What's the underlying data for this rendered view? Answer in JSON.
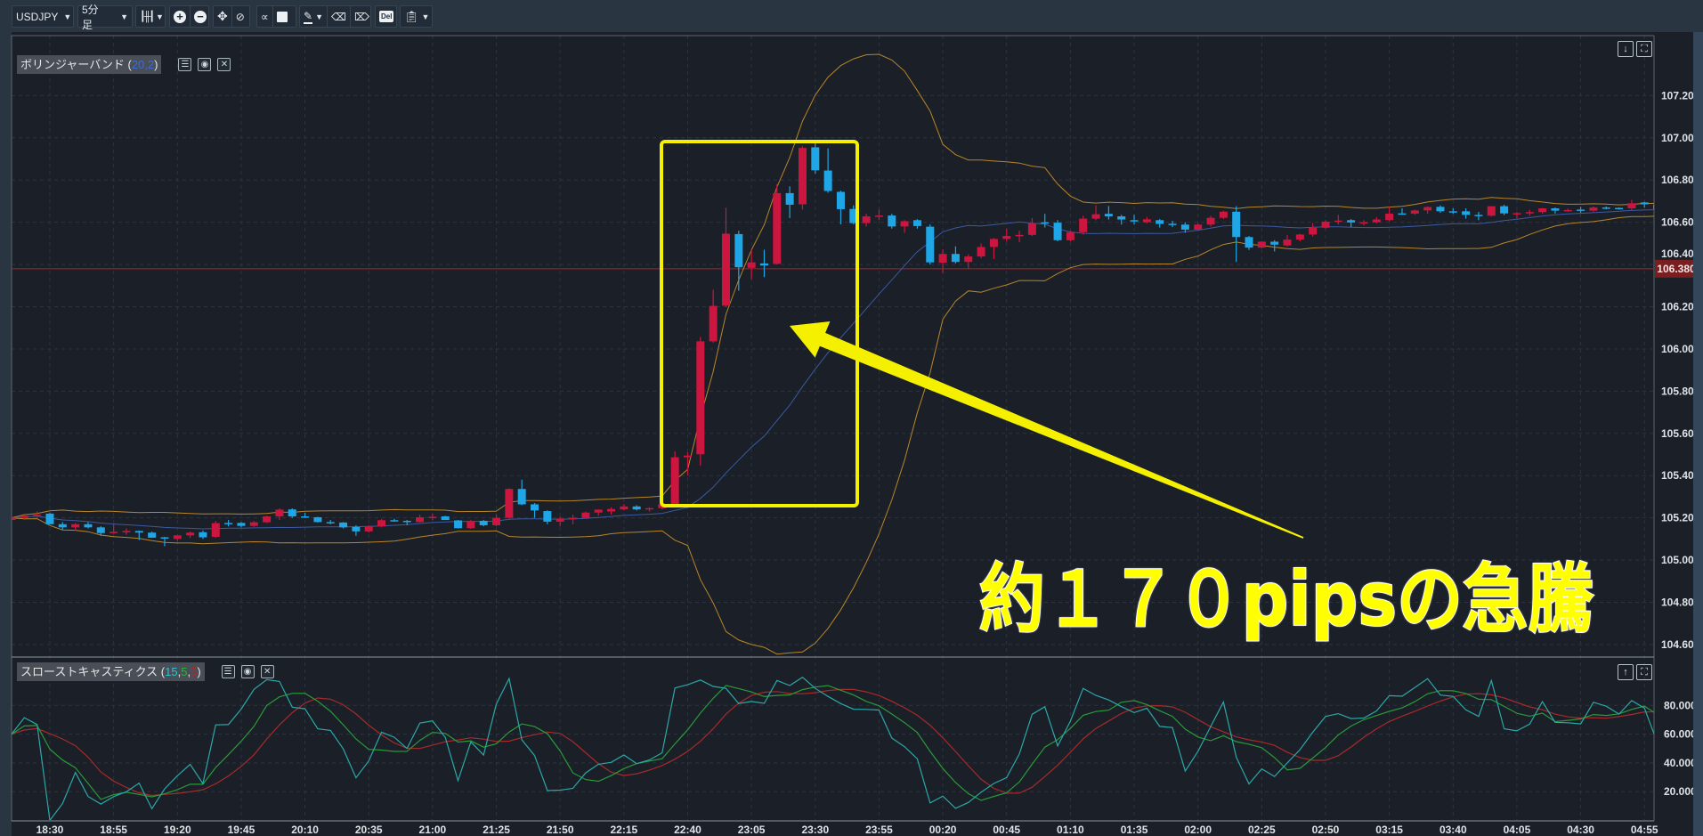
{
  "toolbar": {
    "symbol": "USDJPY",
    "timeframe": "5分足",
    "chart_type_icon": "candlestick-icon",
    "tools": [
      "zoom-in-icon",
      "zoom-out-icon",
      "move-icon",
      "axis-reset-icon",
      "indicator-icon",
      "save-icon",
      "pen-icon",
      "eraser-icon",
      "eraser-all-icon",
      "delete-icon",
      "clipboard-icon"
    ],
    "delete_label": "Del"
  },
  "main_panel": {
    "indicator_name": "ボリンジャーバンド (",
    "indicator_params": "20,2",
    "indicator_close": ")"
  },
  "stoch_panel": {
    "indicator_name": "スローストキャスティクス (",
    "param_k": "15",
    "param_d": "5",
    "param_sd": "5",
    "sep": ",",
    "indicator_close": ")"
  },
  "current_price": "106.380",
  "annotation": {
    "text": "約１７０pipsの急騰"
  },
  "colors": {
    "background": "#1b1f27",
    "up_candle": "#cc1640",
    "down_candle": "#1ea6e6",
    "bb_band": "#b8862a",
    "bb_mid": "#3b5aa3",
    "stoch_k": "#2ba8a8",
    "stoch_slow_k": "#2a9a3a",
    "stoch_slow_d": "#a82a2a",
    "annotation": "#ffff00",
    "current_price_line": "#a3262a"
  },
  "chart_data": [
    {
      "type": "candlestick",
      "title": "",
      "symbol": "USDJPY",
      "interval_minutes": 5,
      "first_time": "18:15",
      "ylim": [
        104.545,
        107.484
      ],
      "y_ticks": [
        "107.200",
        "107.000",
        "106.800",
        "106.600",
        "106.400",
        "106.200",
        "106.000",
        "105.800",
        "105.600",
        "105.400",
        "105.200",
        "105.000",
        "104.800",
        "104.600"
      ],
      "x_ticks": [
        "18:30",
        "18:55",
        "19:20",
        "19:45",
        "20:10",
        "20:35",
        "21:00",
        "21:25",
        "21:50",
        "22:15",
        "22:40",
        "23:05",
        "23:30",
        "23:55",
        "00:20",
        "00:45",
        "01:10",
        "01:35",
        "02:00",
        "02:25",
        "02:50",
        "03:15",
        "03:40",
        "04:05",
        "04:30",
        "04:55"
      ],
      "grid": true,
      "indicator": "bollinger(20,2)",
      "ohlc": [
        [
          105.19,
          105.21,
          105.185,
          105.2
        ],
        [
          105.2,
          105.22,
          105.19,
          105.21
        ],
        [
          105.21,
          105.23,
          105.2,
          105.215
        ],
        [
          105.22,
          105.225,
          105.17,
          105.17
        ],
        [
          105.17,
          105.18,
          105.145,
          105.155
        ],
        [
          105.155,
          105.175,
          105.14,
          105.17
        ],
        [
          105.17,
          105.18,
          105.15,
          105.155
        ],
        [
          105.155,
          105.16,
          105.115,
          105.128
        ],
        [
          105.128,
          105.17,
          105.125,
          105.134
        ],
        [
          105.135,
          105.15,
          105.12,
          105.138
        ],
        [
          105.138,
          105.14,
          105.095,
          105.13
        ],
        [
          105.13,
          105.135,
          105.105,
          105.106
        ],
        [
          105.108,
          105.11,
          105.066,
          105.102
        ],
        [
          105.1,
          105.12,
          105.09,
          105.117
        ],
        [
          105.117,
          105.135,
          105.105,
          105.13
        ],
        [
          105.132,
          105.14,
          105.1,
          105.108
        ],
        [
          105.11,
          105.185,
          105.105,
          105.175
        ],
        [
          105.176,
          105.19,
          105.16,
          105.172
        ],
        [
          105.176,
          105.18,
          105.155,
          105.162
        ],
        [
          105.162,
          105.185,
          105.158,
          105.179
        ],
        [
          105.179,
          105.21,
          105.175,
          105.207
        ],
        [
          105.207,
          105.245,
          105.19,
          105.239
        ],
        [
          105.24,
          105.245,
          105.2,
          105.207
        ],
        [
          105.207,
          105.225,
          105.2,
          105.205
        ],
        [
          105.203,
          105.205,
          105.178,
          105.18
        ],
        [
          105.18,
          105.19,
          105.17,
          105.178
        ],
        [
          105.178,
          105.18,
          105.15,
          105.155
        ],
        [
          105.157,
          105.165,
          105.115,
          105.136
        ],
        [
          105.136,
          105.165,
          105.13,
          105.16
        ],
        [
          105.16,
          105.195,
          105.155,
          105.189
        ],
        [
          105.189,
          105.196,
          105.182,
          105.186
        ],
        [
          105.186,
          105.19,
          105.165,
          105.18
        ],
        [
          105.18,
          105.215,
          105.178,
          105.203
        ],
        [
          105.203,
          105.22,
          105.19,
          105.205
        ],
        [
          105.207,
          105.21,
          105.19,
          105.19
        ],
        [
          105.188,
          105.19,
          105.15,
          105.151
        ],
        [
          105.151,
          105.19,
          105.148,
          105.186
        ],
        [
          105.186,
          105.19,
          105.16,
          105.165
        ],
        [
          105.165,
          105.215,
          105.16,
          105.2
        ],
        [
          105.2,
          105.34,
          105.195,
          105.337
        ],
        [
          105.337,
          105.381,
          105.26,
          105.264
        ],
        [
          105.264,
          105.27,
          105.2,
          105.235
        ],
        [
          105.232,
          105.236,
          105.17,
          105.182
        ],
        [
          105.182,
          105.205,
          105.16,
          105.197
        ],
        [
          105.198,
          105.215,
          105.17,
          105.2
        ],
        [
          105.2,
          105.23,
          105.195,
          105.225
        ],
        [
          105.225,
          105.24,
          105.21,
          105.239
        ],
        [
          105.23,
          105.25,
          105.215,
          105.242
        ],
        [
          105.24,
          105.265,
          105.235,
          105.254
        ],
        [
          105.254,
          105.26,
          105.235,
          105.24
        ],
        [
          105.243,
          105.25,
          105.23,
          105.246
        ],
        [
          105.246,
          105.265,
          105.24,
          105.264
        ],
        [
          105.264,
          105.515,
          105.25,
          105.487
        ],
        [
          105.487,
          105.51,
          105.4,
          105.495
        ],
        [
          105.501,
          106.057,
          105.447,
          106.036
        ],
        [
          106.036,
          106.28,
          106.03,
          106.204
        ],
        [
          106.205,
          106.669,
          106.2,
          106.546
        ],
        [
          106.544,
          106.56,
          106.276,
          106.387
        ],
        [
          106.384,
          106.47,
          106.33,
          106.41
        ],
        [
          106.405,
          106.47,
          106.34,
          106.395
        ],
        [
          106.403,
          106.78,
          106.4,
          106.738
        ],
        [
          106.738,
          106.77,
          106.62,
          106.683
        ],
        [
          106.685,
          106.96,
          106.66,
          106.952
        ],
        [
          106.955,
          106.99,
          106.83,
          106.846
        ],
        [
          106.845,
          106.95,
          106.74,
          106.748
        ],
        [
          106.744,
          106.75,
          106.59,
          106.662
        ],
        [
          106.663,
          106.68,
          106.59,
          106.596
        ],
        [
          106.596,
          106.64,
          106.58,
          106.628
        ],
        [
          106.628,
          106.66,
          106.61,
          106.632
        ],
        [
          106.632,
          106.64,
          106.57,
          106.58
        ],
        [
          106.58,
          106.61,
          106.55,
          106.605
        ],
        [
          106.61,
          106.615,
          106.57,
          106.582
        ],
        [
          106.579,
          106.59,
          106.4,
          106.41
        ],
        [
          106.408,
          106.472,
          106.359,
          106.45
        ],
        [
          106.45,
          106.486,
          106.405,
          106.412
        ],
        [
          106.412,
          106.448,
          106.38,
          106.438
        ],
        [
          106.438,
          106.5,
          106.43,
          106.483
        ],
        [
          106.483,
          106.525,
          106.426,
          106.521
        ],
        [
          106.521,
          106.57,
          106.508,
          106.535
        ],
        [
          106.537,
          106.56,
          106.505,
          106.54
        ],
        [
          106.54,
          106.62,
          106.535,
          106.596
        ],
        [
          106.6,
          106.64,
          106.575,
          106.597
        ],
        [
          106.598,
          106.61,
          106.51,
          106.515
        ],
        [
          106.515,
          106.56,
          106.51,
          106.553
        ],
        [
          106.553,
          106.631,
          106.542,
          106.617
        ],
        [
          106.617,
          106.68,
          106.61,
          106.638
        ],
        [
          106.64,
          106.677,
          106.613,
          106.628
        ],
        [
          106.628,
          106.635,
          106.589,
          106.613
        ],
        [
          106.61,
          106.635,
          106.589,
          106.605
        ],
        [
          106.6,
          106.625,
          106.595,
          106.614
        ],
        [
          106.61,
          106.615,
          106.575,
          106.592
        ],
        [
          106.593,
          106.607,
          106.577,
          106.59
        ],
        [
          106.589,
          106.6,
          106.55,
          106.565
        ],
        [
          106.565,
          106.595,
          106.56,
          106.589
        ],
        [
          106.589,
          106.631,
          106.58,
          106.621
        ],
        [
          106.621,
          106.655,
          106.615,
          106.65
        ],
        [
          106.65,
          106.676,
          106.412,
          106.53
        ],
        [
          106.53,
          106.535,
          106.469,
          106.48
        ],
        [
          106.48,
          106.51,
          106.476,
          106.508
        ],
        [
          106.508,
          106.515,
          106.462,
          106.494
        ],
        [
          106.49,
          106.54,
          106.485,
          106.518
        ],
        [
          106.518,
          106.545,
          106.51,
          106.542
        ],
        [
          106.542,
          106.596,
          106.532,
          106.574
        ],
        [
          106.574,
          106.61,
          106.57,
          106.603
        ],
        [
          106.605,
          106.635,
          106.589,
          106.608
        ],
        [
          106.61,
          106.615,
          106.577,
          106.599
        ],
        [
          106.598,
          106.61,
          106.585,
          106.6
        ],
        [
          106.6,
          106.624,
          106.595,
          106.613
        ],
        [
          106.61,
          106.673,
          106.605,
          106.641
        ],
        [
          106.642,
          106.666,
          106.636,
          106.64
        ],
        [
          106.641,
          106.66,
          106.635,
          106.656
        ],
        [
          106.656,
          106.675,
          106.64,
          106.672
        ],
        [
          106.673,
          106.68,
          106.645,
          106.652
        ],
        [
          106.652,
          106.666,
          106.64,
          106.65
        ],
        [
          106.652,
          106.666,
          106.617,
          106.635
        ],
        [
          106.635,
          106.649,
          106.61,
          106.633
        ],
        [
          106.631,
          106.676,
          106.627,
          106.676
        ],
        [
          106.676,
          106.683,
          106.634,
          106.642
        ],
        [
          106.641,
          106.649,
          106.617,
          106.643
        ],
        [
          106.646,
          106.659,
          106.631,
          106.648
        ],
        [
          106.648,
          106.668,
          106.64,
          106.666
        ],
        [
          106.666,
          106.67,
          106.641,
          106.655
        ],
        [
          106.656,
          106.665,
          106.65,
          106.658
        ],
        [
          106.66,
          106.673,
          106.645,
          106.659
        ],
        [
          106.655,
          106.675,
          106.65,
          106.67
        ],
        [
          106.67,
          106.675,
          106.662,
          106.668
        ],
        [
          106.668,
          106.67,
          106.66,
          106.664
        ],
        [
          106.666,
          106.706,
          106.659,
          106.69
        ],
        [
          106.694,
          106.697,
          106.67,
          106.685
        ],
        [
          106.683,
          106.69,
          106.66,
          106.662
        ]
      ]
    },
    {
      "type": "line",
      "title": "",
      "indicator": "slow stochastics(15,5,5)",
      "ylim": [
        0,
        113
      ],
      "y_ticks": [
        "80.000",
        "60.000",
        "40.000",
        "20.000"
      ],
      "grid": true
    }
  ]
}
